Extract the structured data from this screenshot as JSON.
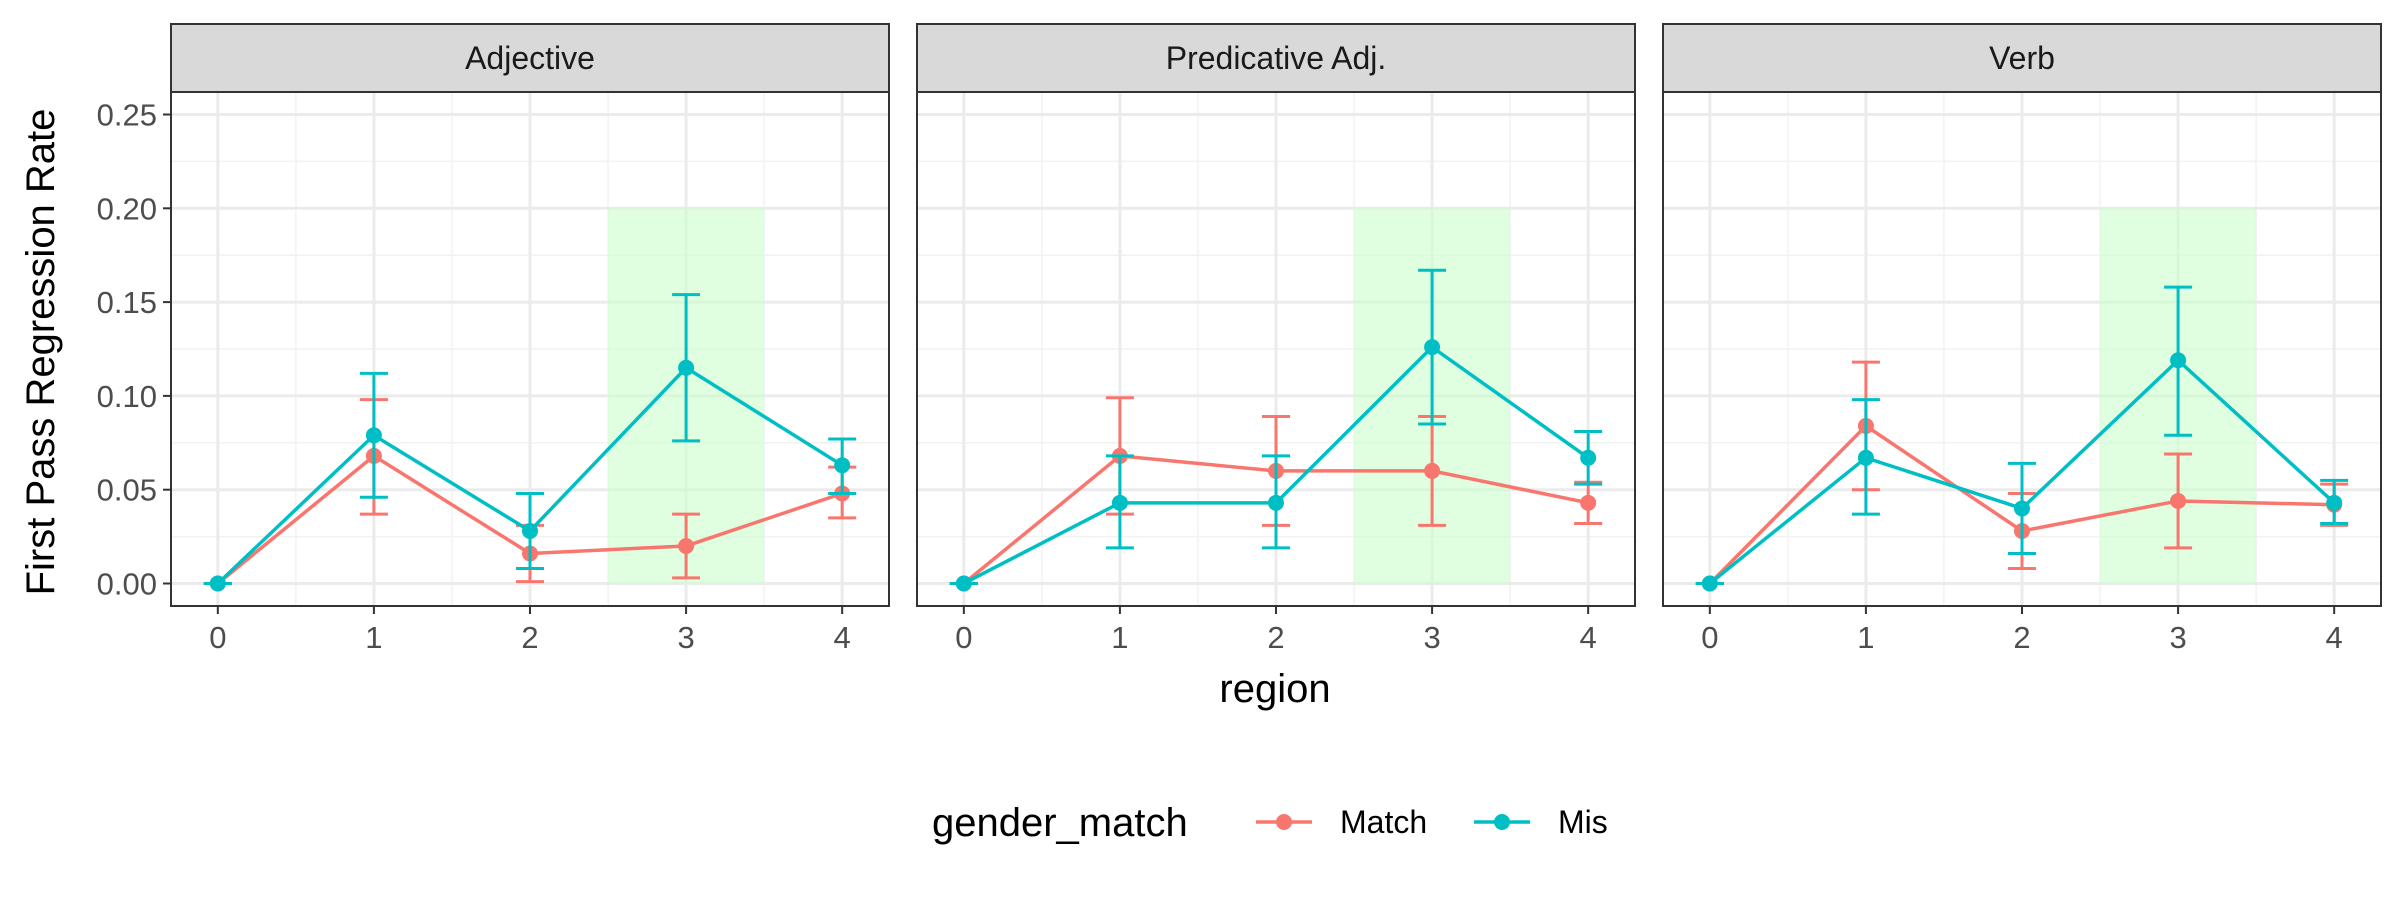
{
  "chart_data": {
    "type": "line",
    "xlabel": "region",
    "ylabel": "First Pass Regression Rate",
    "x": [
      0,
      1,
      2,
      3,
      4
    ],
    "xlim": [
      -0.3,
      4.3
    ],
    "ylim": [
      -0.012,
      0.262
    ],
    "y_ticks": [
      "0.00",
      "0.05",
      "0.10",
      "0.15",
      "0.20",
      "0.25"
    ],
    "grid": true,
    "highlight": {
      "x_range": [
        2.5,
        3.5
      ],
      "y_range": [
        0,
        0.2
      ],
      "color": "#ccffcc"
    },
    "legend": {
      "title": "gender_match",
      "position": "bottom",
      "entries": [
        {
          "name": "Match",
          "color": "#F8766D"
        },
        {
          "name": "Mis",
          "color": "#00BFC4"
        }
      ]
    },
    "panels": [
      {
        "title": "Adjective",
        "series": [
          {
            "name": "Match",
            "color": "#F8766D",
            "values": [
              0.0,
              0.068,
              0.016,
              0.02,
              0.048
            ],
            "lower": [
              0.0,
              0.037,
              0.001,
              0.003,
              0.035
            ],
            "upper": [
              0.0,
              0.098,
              0.031,
              0.037,
              0.062
            ]
          },
          {
            "name": "Mis",
            "color": "#00BFC4",
            "values": [
              0.0,
              0.079,
              0.028,
              0.115,
              0.063
            ],
            "lower": [
              0.0,
              0.046,
              0.008,
              0.076,
              0.048
            ],
            "upper": [
              0.0,
              0.112,
              0.048,
              0.154,
              0.077
            ]
          }
        ]
      },
      {
        "title": "Predicative Adj.",
        "series": [
          {
            "name": "Match",
            "color": "#F8766D",
            "values": [
              0.0,
              0.068,
              0.06,
              0.06,
              0.043
            ],
            "lower": [
              0.0,
              0.037,
              0.031,
              0.031,
              0.032
            ],
            "upper": [
              0.0,
              0.099,
              0.089,
              0.089,
              0.054
            ]
          },
          {
            "name": "Mis",
            "color": "#00BFC4",
            "values": [
              0.0,
              0.043,
              0.043,
              0.126,
              0.067
            ],
            "lower": [
              0.0,
              0.019,
              0.019,
              0.085,
              0.053
            ],
            "upper": [
              0.0,
              0.068,
              0.068,
              0.167,
              0.081
            ]
          }
        ]
      },
      {
        "title": "Verb",
        "series": [
          {
            "name": "Match",
            "color": "#F8766D",
            "values": [
              0.0,
              0.084,
              0.028,
              0.044,
              0.042
            ],
            "lower": [
              0.0,
              0.05,
              0.008,
              0.019,
              0.031
            ],
            "upper": [
              0.0,
              0.118,
              0.048,
              0.069,
              0.053
            ]
          },
          {
            "name": "Mis",
            "color": "#00BFC4",
            "values": [
              0.0,
              0.067,
              0.04,
              0.119,
              0.043
            ],
            "lower": [
              0.0,
              0.037,
              0.016,
              0.079,
              0.032
            ],
            "upper": [
              0.0,
              0.098,
              0.064,
              0.158,
              0.055
            ]
          }
        ]
      }
    ]
  }
}
